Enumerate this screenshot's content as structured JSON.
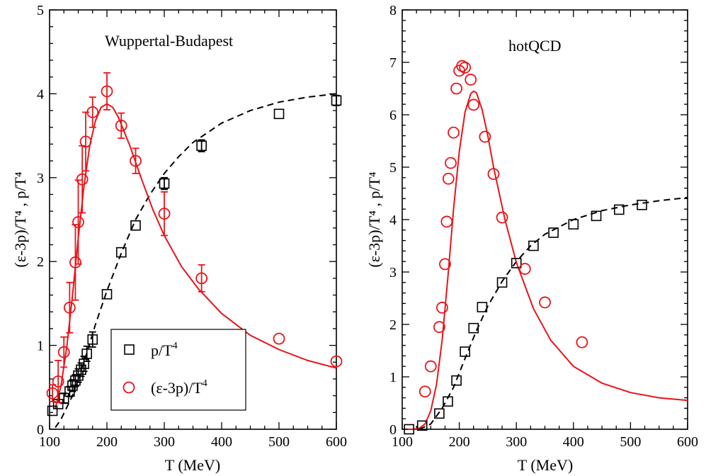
{
  "colors": {
    "red": "#e8141a",
    "black": "#000000"
  },
  "chart_data": [
    {
      "type": "scatter",
      "title": "Wuppertal-Budapest",
      "xlabel": "T (MeV)",
      "ylabel": "(ε-3p)/T⁴ , p/T⁴",
      "xlim": [
        100,
        600
      ],
      "ylim": [
        0,
        5
      ],
      "x_ticks": [
        100,
        200,
        300,
        400,
        500,
        600
      ],
      "y_ticks": [
        0,
        1,
        2,
        3,
        4,
        5
      ],
      "legend": {
        "location": "lower-left",
        "entries": [
          {
            "label": "p/T",
            "sup": "4",
            "marker": "square",
            "color": "#000000"
          },
          {
            "label": "(ε-3p)/T",
            "sup": "4",
            "marker": "circle",
            "color": "#e8141a"
          }
        ]
      },
      "series": [
        {
          "name": "p/T4",
          "marker": "square",
          "color": "#000000",
          "x": [
            105,
            115,
            125,
            135,
            140,
            145,
            150,
            155,
            160,
            165,
            175,
            200,
            225,
            250,
            300,
            365,
            500,
            600
          ],
          "y": [
            0.22,
            0.3,
            0.37,
            0.45,
            0.52,
            0.58,
            0.64,
            0.71,
            0.78,
            0.9,
            1.07,
            1.61,
            2.11,
            2.43,
            2.93,
            3.38,
            3.76,
            3.92
          ],
          "err": [
            0.03,
            0.05,
            0.06,
            0.06,
            0.07,
            0.07,
            0.08,
            0.08,
            0.09,
            0.09,
            0.09,
            0.04,
            0.05,
            0.05,
            0.07,
            0.07,
            0.05,
            0.06
          ]
        },
        {
          "name": "(e-3p)/T4",
          "marker": "circle",
          "color": "#e8141a",
          "x": [
            105,
            115,
            125,
            135,
            145,
            150,
            157,
            163,
            175,
            200,
            225,
            250,
            300,
            365,
            500,
            600
          ],
          "y": [
            0.43,
            0.57,
            0.92,
            1.45,
            1.99,
            2.47,
            2.98,
            3.43,
            3.78,
            4.03,
            3.62,
            3.2,
            2.57,
            1.8,
            1.08,
            0.81
          ],
          "err": [
            0.1,
            0.25,
            0.18,
            0.3,
            0.45,
            0.5,
            0.4,
            0.35,
            0.18,
            0.22,
            0.15,
            0.15,
            0.26,
            0.16,
            0.04,
            0.02
          ]
        },
        {
          "name": "p/T4 fit",
          "style": "dashed",
          "color": "#000000",
          "x": [
            110,
            120,
            140,
            160,
            180,
            200,
            225,
            250,
            275,
            300,
            325,
            350,
            400,
            450,
            500,
            550,
            600
          ],
          "y": [
            0.02,
            0.12,
            0.4,
            0.8,
            1.25,
            1.65,
            2.1,
            2.5,
            2.8,
            3.05,
            3.25,
            3.42,
            3.65,
            3.8,
            3.9,
            3.96,
            4.0
          ]
        },
        {
          "name": "(e-3p)/T4 fit",
          "style": "solid",
          "color": "#e8141a",
          "x": [
            110,
            120,
            130,
            140,
            150,
            160,
            170,
            180,
            190,
            200,
            210,
            220,
            240,
            260,
            280,
            300,
            330,
            360,
            400,
            450,
            500,
            550,
            600
          ],
          "y": [
            0.25,
            0.52,
            0.98,
            1.6,
            2.28,
            2.9,
            3.38,
            3.68,
            3.84,
            3.88,
            3.84,
            3.72,
            3.38,
            2.99,
            2.62,
            2.31,
            1.94,
            1.67,
            1.38,
            1.12,
            0.95,
            0.82,
            0.73
          ]
        }
      ]
    },
    {
      "type": "scatter",
      "title": "hotQCD",
      "xlabel": "T (MeV)",
      "ylabel": "(ε-3p)/T⁴ , p/T⁴",
      "xlim": [
        100,
        600
      ],
      "ylim": [
        0,
        8
      ],
      "x_ticks": [
        100,
        200,
        300,
        400,
        500,
        600
      ],
      "y_ticks": [
        0,
        1,
        2,
        3,
        4,
        5,
        6,
        7,
        8
      ],
      "series": [
        {
          "name": "p/T4",
          "marker": "square",
          "color": "#000000",
          "x": [
            112,
            135,
            165,
            180,
            195,
            210,
            225,
            240,
            275,
            300,
            330,
            365,
            400,
            440,
            480,
            520
          ],
          "y": [
            0.0,
            0.07,
            0.3,
            0.53,
            0.93,
            1.48,
            1.93,
            2.33,
            2.8,
            3.17,
            3.5,
            3.75,
            3.91,
            4.07,
            4.19,
            4.28
          ]
        },
        {
          "name": "(e-3p)/T4",
          "marker": "circle",
          "color": "#e8141a",
          "x": [
            140,
            150,
            165,
            170,
            175,
            178,
            181,
            185,
            190,
            195,
            200,
            205,
            210,
            220,
            225,
            245,
            260,
            275,
            315,
            350,
            415
          ],
          "y": [
            0.72,
            1.2,
            1.95,
            2.32,
            3.15,
            3.96,
            4.78,
            5.08,
            5.66,
            6.5,
            6.84,
            6.93,
            6.9,
            6.67,
            6.19,
            5.58,
            4.87,
            4.04,
            3.06,
            2.42,
            1.66
          ]
        },
        {
          "name": "p/T4 fit",
          "style": "dashed",
          "color": "#000000",
          "x": [
            130,
            150,
            170,
            190,
            210,
            230,
            250,
            275,
            300,
            325,
            350,
            400,
            450,
            500,
            550,
            600
          ],
          "y": [
            0.0,
            0.1,
            0.4,
            0.8,
            1.35,
            1.88,
            2.35,
            2.82,
            3.2,
            3.5,
            3.72,
            4.0,
            4.17,
            4.28,
            4.36,
            4.42
          ]
        },
        {
          "name": "(e-3p)/T4 fit",
          "style": "solid",
          "color": "#e8141a",
          "x": [
            110,
            120,
            130,
            140,
            150,
            160,
            170,
            180,
            190,
            200,
            210,
            220,
            225,
            230,
            240,
            250,
            260,
            280,
            300,
            330,
            360,
            400,
            450,
            500,
            550,
            600
          ],
          "y": [
            0.0,
            0.0,
            0.02,
            0.1,
            0.35,
            0.85,
            1.7,
            2.9,
            4.2,
            5.3,
            6.05,
            6.4,
            6.45,
            6.42,
            6.1,
            5.6,
            5.0,
            4.0,
            3.18,
            2.3,
            1.7,
            1.2,
            0.88,
            0.7,
            0.6,
            0.55
          ]
        }
      ]
    }
  ]
}
